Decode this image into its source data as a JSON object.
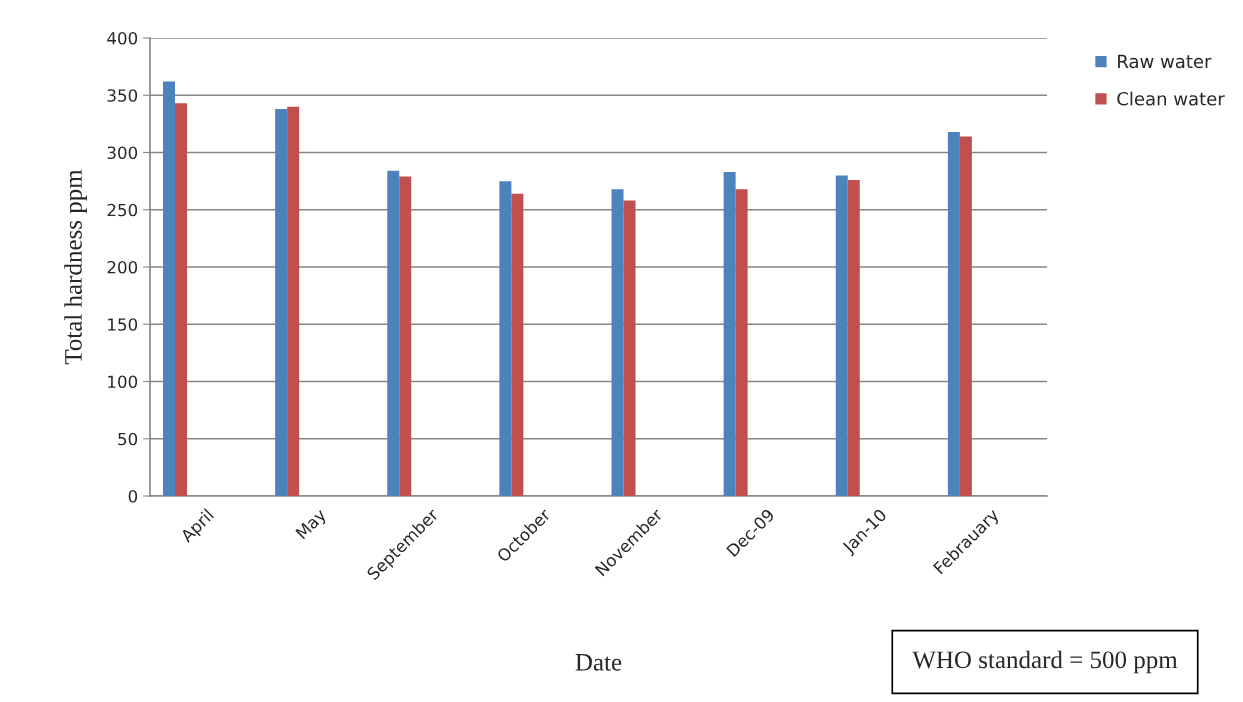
{
  "chart_data": {
    "type": "bar",
    "xlabel": "Date",
    "ylabel": "Total hardness ppm",
    "categories": [
      "April",
      "May",
      "September",
      "October",
      "November",
      "Dec-09",
      "Jan-10",
      "Febrauary"
    ],
    "series": [
      {
        "name": "Raw water",
        "color": "#4f81bd",
        "values": [
          362,
          338,
          284,
          275,
          268,
          283,
          280,
          318
        ]
      },
      {
        "name": "Clean water",
        "color": "#c0504d",
        "values": [
          343,
          340,
          279,
          264,
          258,
          268,
          276,
          314
        ]
      }
    ],
    "ylim": [
      0,
      400
    ],
    "yticks": [
      0,
      50,
      100,
      150,
      200,
      250,
      300,
      350,
      400
    ],
    "grid": "y",
    "legend": "top right",
    "annotations": [
      "WHO standard = 500 ppm"
    ]
  }
}
